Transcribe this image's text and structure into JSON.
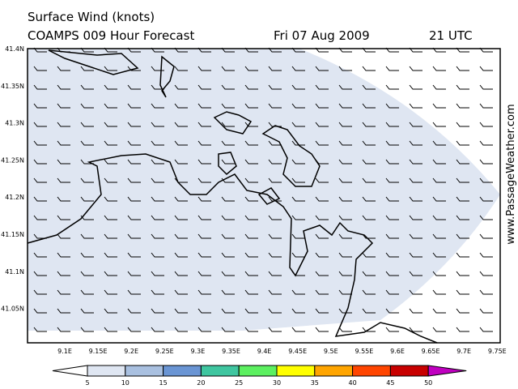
{
  "header": {
    "title": "Surface Wind (knots)",
    "model": "COAMPS 009 Hour Forecast",
    "date": "Fri 07 Aug 2009",
    "time": "21 UTC"
  },
  "map": {
    "lat_labels": [
      "41.4N",
      "41.35N",
      "41.3N",
      "41.25N",
      "41.2N",
      "41.15N",
      "41.1N",
      "41.05N"
    ],
    "lon_labels": [
      "9.1E",
      "9.15E",
      "9.2E",
      "9.25E",
      "9.3E",
      "9.35E",
      "9.4E",
      "9.45E",
      "9.5E",
      "9.55E",
      "9.6E",
      "9.65E",
      "9.7E",
      "9.75E"
    ],
    "credit": "www.PassageWeather.com"
  },
  "colorbar": {
    "labels": [
      5,
      10,
      15,
      20,
      25,
      30,
      35,
      40,
      45,
      50
    ],
    "colors": [
      "#ffffff",
      "#dfe6f2",
      "#a9c0e0",
      "#6a95d4",
      "#3fc6a0",
      "#5cf060",
      "#ffff00",
      "#ffa500",
      "#ff4500",
      "#c80000",
      "#c000c0"
    ]
  }
}
